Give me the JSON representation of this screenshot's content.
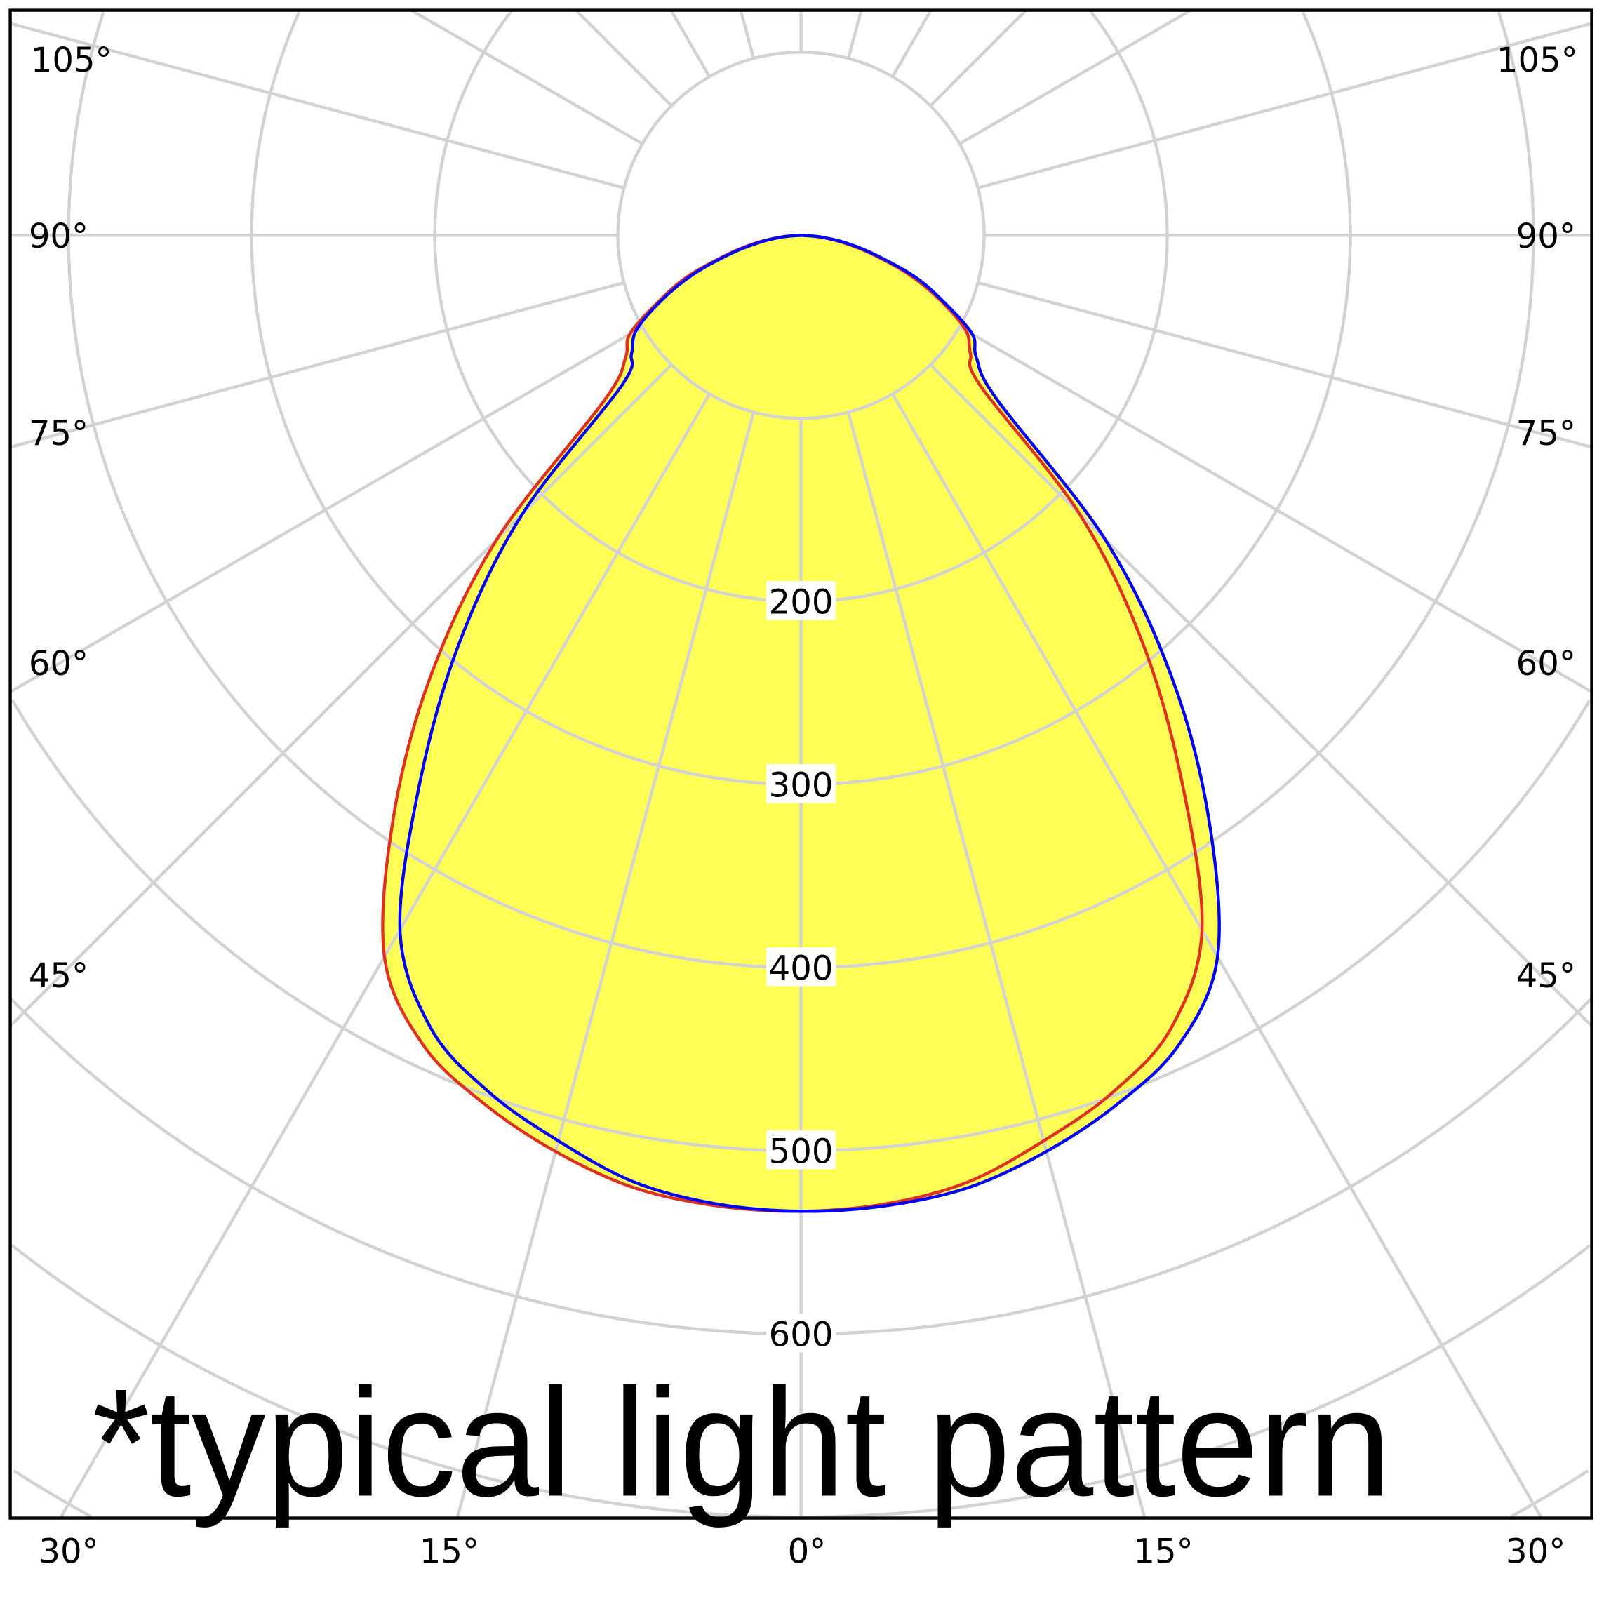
{
  "chart_data": {
    "type": "polar-line",
    "title": "*typical light pattern",
    "angle_zero": "down",
    "radial_ticks": [
      200,
      300,
      400,
      500,
      600
    ],
    "radial_grid": [
      100,
      200,
      300,
      400,
      500,
      600,
      700,
      800,
      900,
      1000
    ],
    "angle_grid_step": 15,
    "angle_labels": {
      "left": [
        "105°",
        "90°",
        "75°",
        "60°",
        "45°",
        "30°",
        "15°"
      ],
      "bottom_center": "0°",
      "right": [
        "15°",
        "30°",
        "45°",
        "60°",
        "75°",
        "90°",
        "105°"
      ]
    },
    "grid": true,
    "fill_color": "#ffff55",
    "angles": [
      -90,
      -85,
      -80,
      -75,
      -70,
      -65,
      -60,
      -55,
      -50,
      -45,
      -40,
      -35,
      -30,
      -25,
      -20,
      -15,
      -10,
      -5,
      0,
      5,
      10,
      15,
      20,
      25,
      30,
      35,
      40,
      45,
      50,
      55,
      60,
      65,
      70,
      75,
      80,
      85,
      90
    ],
    "series": [
      {
        "color": "#e03020",
        "values": [
          0,
          11,
          26,
          43,
          66,
          86,
          108,
          117,
          140,
          235,
          315,
          388,
          455,
          488,
          505,
          518,
          528,
          532,
          533,
          531,
          525,
          512,
          498,
          478,
          438,
          362,
          290,
          215,
          128,
          113,
          104,
          84,
          63,
          41,
          24,
          10,
          0
        ]
      },
      {
        "color": "#0000ff",
        "values": [
          0,
          10,
          24,
          41,
          63,
          84,
          104,
          113,
          128,
          215,
          290,
          362,
          438,
          478,
          498,
          512,
          525,
          531,
          533,
          532,
          528,
          518,
          505,
          488,
          455,
          388,
          315,
          235,
          140,
          117,
          108,
          86,
          66,
          43,
          26,
          11,
          0
        ]
      }
    ]
  }
}
